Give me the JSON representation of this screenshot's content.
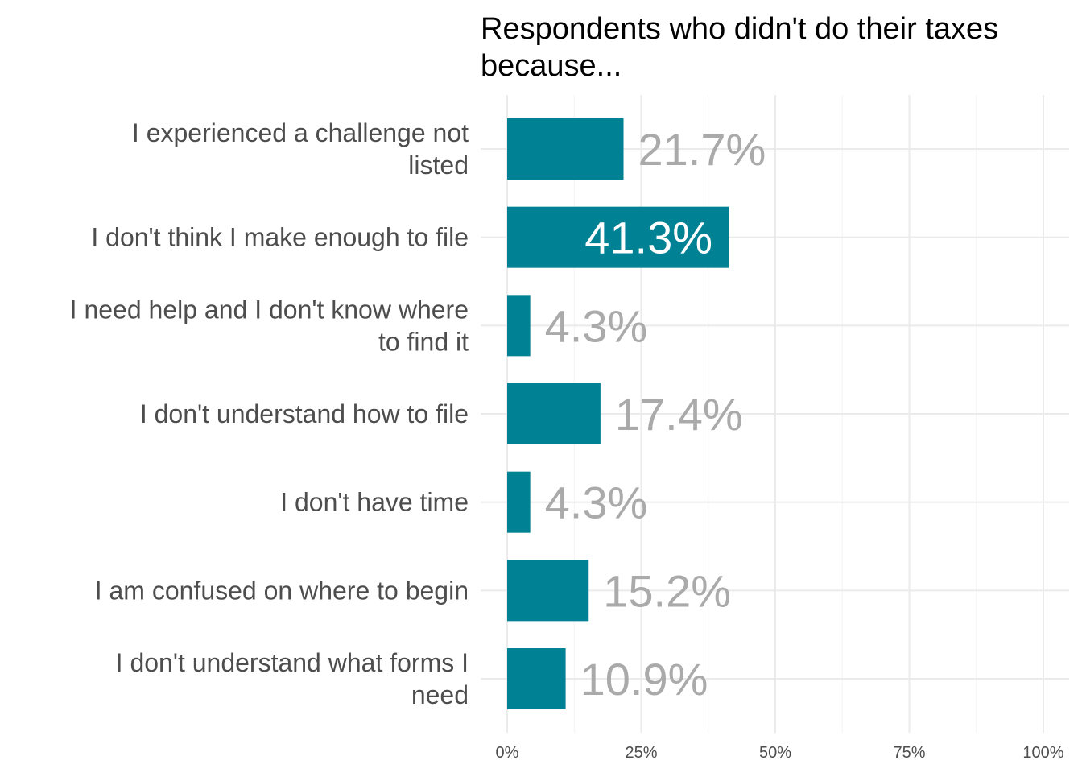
{
  "chart_data": {
    "type": "bar",
    "orientation": "horizontal",
    "title_lines": [
      "Respondents who didn't do their taxes",
      "because..."
    ],
    "categories": [
      [
        "I experienced a challenge not",
        "listed"
      ],
      [
        "I don't think I make enough to file"
      ],
      [
        "I need help and I don't know where",
        "to find it"
      ],
      [
        "I don't understand how to file"
      ],
      [
        "I don't have time"
      ],
      [
        "I am confused on where to begin"
      ],
      [
        "I don't understand what forms I",
        "need"
      ]
    ],
    "values": [
      21.7,
      41.3,
      4.3,
      17.4,
      4.3,
      15.2,
      10.9
    ],
    "labels": [
      "21.7%",
      "41.3%",
      "4.3%",
      "17.4%",
      "4.3%",
      "15.2%",
      "10.9%"
    ],
    "highlight_index": 1,
    "xlim": [
      0,
      100
    ],
    "x_ticks": [
      0,
      25,
      50,
      75,
      100
    ],
    "x_tick_labels": [
      "0%",
      "25%",
      "50%",
      "75%",
      "100%"
    ],
    "grid": true,
    "colors": {
      "bar": "#008294",
      "label": "#aaaaaa",
      "label_highlight": "#ffffff"
    }
  }
}
